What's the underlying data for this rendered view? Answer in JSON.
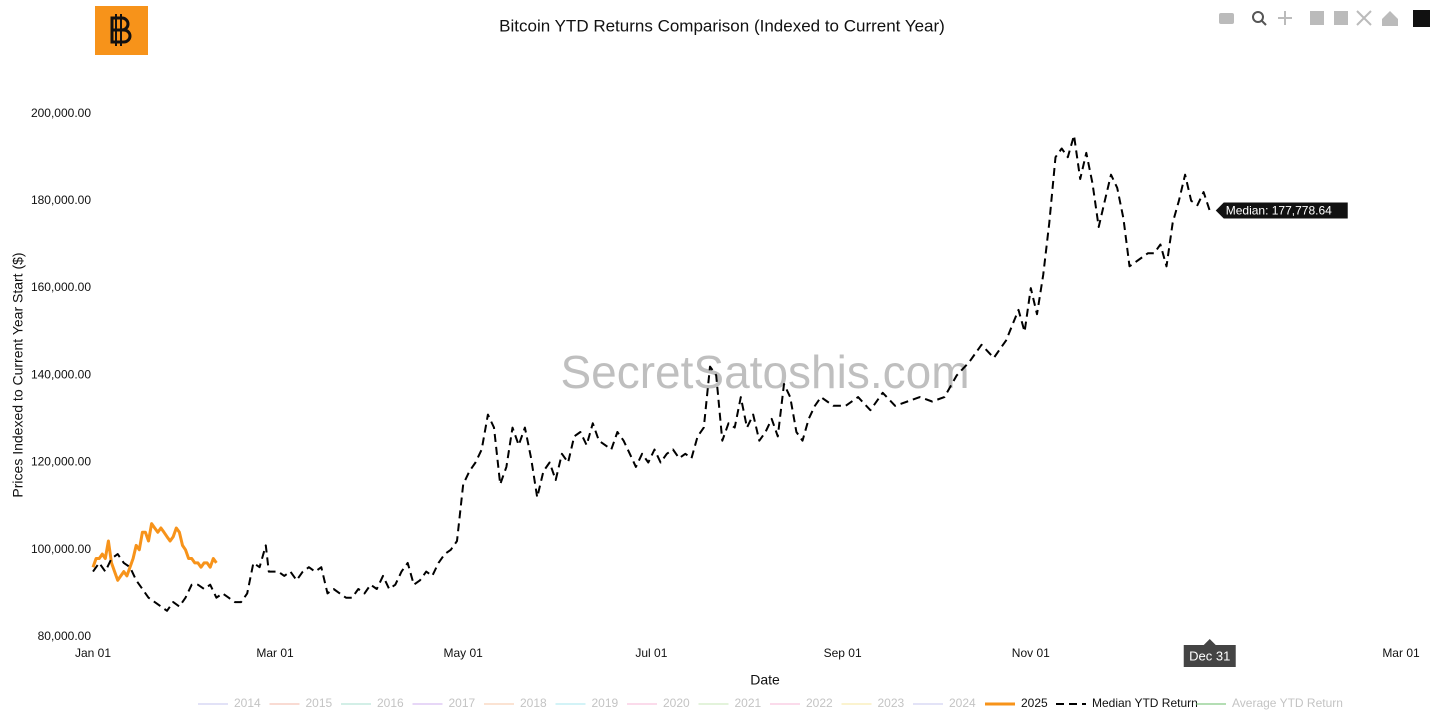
{
  "chart_data": {
    "type": "line",
    "title": "Bitcoin YTD Returns Comparison (Indexed to Current Year)",
    "xlabel": "Date",
    "ylabel": "Prices Indexed to Current Year Start ($)",
    "watermark": "SecretSatoshis.com",
    "xlim": [
      0,
      424
    ],
    "xticks": [
      {
        "value": 0,
        "label": "Jan 01"
      },
      {
        "value": 59,
        "label": "Mar 01"
      },
      {
        "value": 120,
        "label": "May 01"
      },
      {
        "value": 181,
        "label": "Jul 01"
      },
      {
        "value": 243,
        "label": "Sep 01"
      },
      {
        "value": 304,
        "label": "Nov 01"
      },
      {
        "value": 424,
        "label": "Mar 01"
      }
    ],
    "ylim": [
      80000,
      210000
    ],
    "yticks": [
      {
        "value": 80000,
        "label": "80,000.00"
      },
      {
        "value": 100000,
        "label": "100,000.00"
      },
      {
        "value": 120000,
        "label": "120,000.00"
      },
      {
        "value": 140000,
        "label": "140,000.00"
      },
      {
        "value": 160000,
        "label": "160,000.00"
      },
      {
        "value": 180000,
        "label": "180,000.00"
      },
      {
        "value": 200000,
        "label": "200,000.00"
      }
    ],
    "grid": false,
    "legend": "bottom",
    "hover_label": "Median: 177,778.64",
    "hover_x_label": "Dec 31",
    "series": [
      {
        "name": "2014",
        "color": "#c6c6f0",
        "visible": false
      },
      {
        "name": "2015",
        "color": "#f4b8a8",
        "visible": false
      },
      {
        "name": "2016",
        "color": "#a8e0d0",
        "visible": false
      },
      {
        "name": "2017",
        "color": "#d0b0f0",
        "visible": false
      },
      {
        "name": "2018",
        "color": "#f8c8a8",
        "visible": false
      },
      {
        "name": "2019",
        "color": "#a8e8f0",
        "visible": false
      },
      {
        "name": "2020",
        "color": "#f8b8d8",
        "visible": false
      },
      {
        "name": "2021",
        "color": "#c8e8b8",
        "visible": false
      },
      {
        "name": "2022",
        "color": "#f8b8d8",
        "visible": false
      },
      {
        "name": "2023",
        "color": "#f8e8a0",
        "visible": false
      },
      {
        "name": "2024",
        "color": "#c8c8f0",
        "visible": false
      },
      {
        "name": "2025",
        "color": "#f7931a",
        "visible": true,
        "dash": false,
        "x": [
          0,
          1,
          2,
          3,
          4,
          5,
          6,
          7,
          8,
          9,
          10,
          11,
          12,
          13,
          14,
          15,
          16,
          17,
          18,
          19,
          20,
          21,
          22,
          23,
          24,
          25,
          26,
          27,
          28,
          29,
          30,
          31,
          32,
          33,
          34,
          35,
          36,
          37,
          38,
          39,
          40
        ],
        "values": [
          96000,
          98000,
          98000,
          99000,
          98000,
          102000,
          97000,
          95000,
          93000,
          94000,
          95000,
          94000,
          96000,
          98000,
          101000,
          100000,
          104000,
          104000,
          102000,
          106000,
          105000,
          104000,
          105000,
          104000,
          103000,
          102000,
          103000,
          105000,
          104000,
          101000,
          100000,
          98000,
          98000,
          97000,
          97000,
          96000,
          97000,
          97000,
          96000,
          98000,
          97000
        ]
      },
      {
        "name": "Median YTD Return",
        "color": "#000000",
        "visible": true,
        "dash": true,
        "x": [
          0,
          2,
          4,
          6,
          8,
          10,
          12,
          14,
          16,
          18,
          20,
          22,
          24,
          26,
          28,
          30,
          32,
          34,
          36,
          38,
          40,
          42,
          44,
          46,
          48,
          50,
          52,
          54,
          56,
          57,
          60,
          62,
          64,
          66,
          68,
          70,
          72,
          74,
          76,
          78,
          80,
          82,
          84,
          86,
          88,
          90,
          92,
          94,
          96,
          98,
          100,
          102,
          104,
          106,
          108,
          110,
          112,
          114,
          116,
          118,
          120,
          122,
          124,
          126,
          128,
          130,
          132,
          134,
          136,
          138,
          140,
          142,
          144,
          146,
          148,
          150,
          152,
          154,
          156,
          158,
          160,
          162,
          164,
          166,
          168,
          170,
          172,
          174,
          176,
          178,
          180,
          182,
          184,
          186,
          188,
          190,
          192,
          194,
          196,
          198,
          200,
          202,
          204,
          206,
          208,
          210,
          212,
          214,
          216,
          218,
          220,
          222,
          224,
          226,
          228,
          230,
          232,
          234,
          236,
          238,
          240,
          244,
          248,
          252,
          256,
          260,
          264,
          268,
          272,
          276,
          280,
          284,
          288,
          292,
          296,
          300,
          302,
          304,
          306,
          308,
          310,
          312,
          314,
          316,
          318,
          320,
          322,
          324,
          326,
          328,
          330,
          332,
          334,
          336,
          338,
          340,
          342,
          344,
          346,
          348,
          350,
          352,
          354,
          356,
          358,
          360,
          362
        ],
        "values": [
          95000,
          97000,
          95000,
          98000,
          99000,
          97000,
          96000,
          93000,
          91000,
          89000,
          88000,
          87000,
          86000,
          88000,
          87000,
          89000,
          92000,
          92000,
          91000,
          92000,
          89000,
          90000,
          89000,
          88000,
          88000,
          90000,
          97000,
          96000,
          101000,
          95000,
          95000,
          94000,
          95000,
          93000,
          95000,
          96000,
          95000,
          96000,
          90000,
          91000,
          90000,
          89000,
          89000,
          91000,
          90000,
          92000,
          91000,
          94000,
          91000,
          92000,
          95000,
          97000,
          92000,
          93000,
          95000,
          94000,
          97000,
          99000,
          100000,
          102000,
          115000,
          118000,
          120000,
          123000,
          131000,
          128000,
          115000,
          119000,
          128000,
          124000,
          128000,
          121000,
          112000,
          118000,
          120000,
          116000,
          122000,
          120000,
          126000,
          127000,
          124000,
          129000,
          125000,
          124000,
          123000,
          127000,
          125000,
          122000,
          119000,
          122000,
          120000,
          123000,
          120000,
          122000,
          123000,
          121000,
          122000,
          121000,
          126000,
          128000,
          142000,
          140000,
          125000,
          129000,
          128000,
          135000,
          128000,
          131000,
          125000,
          127000,
          130000,
          126000,
          138000,
          135000,
          127000,
          125000,
          130000,
          133000,
          135000,
          134000,
          133000,
          133000,
          135000,
          132000,
          136000,
          133000,
          134000,
          135000,
          134000,
          135000,
          140000,
          143000,
          147000,
          144000,
          148000,
          155000,
          150000,
          160000,
          154000,
          163000,
          175000,
          190000,
          192000,
          190000,
          195000,
          185000,
          191000,
          184000,
          174000,
          180000,
          186000,
          183000,
          176000,
          165000,
          166000,
          167000,
          168000,
          168000,
          170000,
          165000,
          175000,
          180000,
          186000,
          180000,
          179000,
          182000,
          177778.64
        ]
      },
      {
        "name": "Average YTD Return",
        "color": "#6cbf6c",
        "visible": false
      }
    ]
  }
}
